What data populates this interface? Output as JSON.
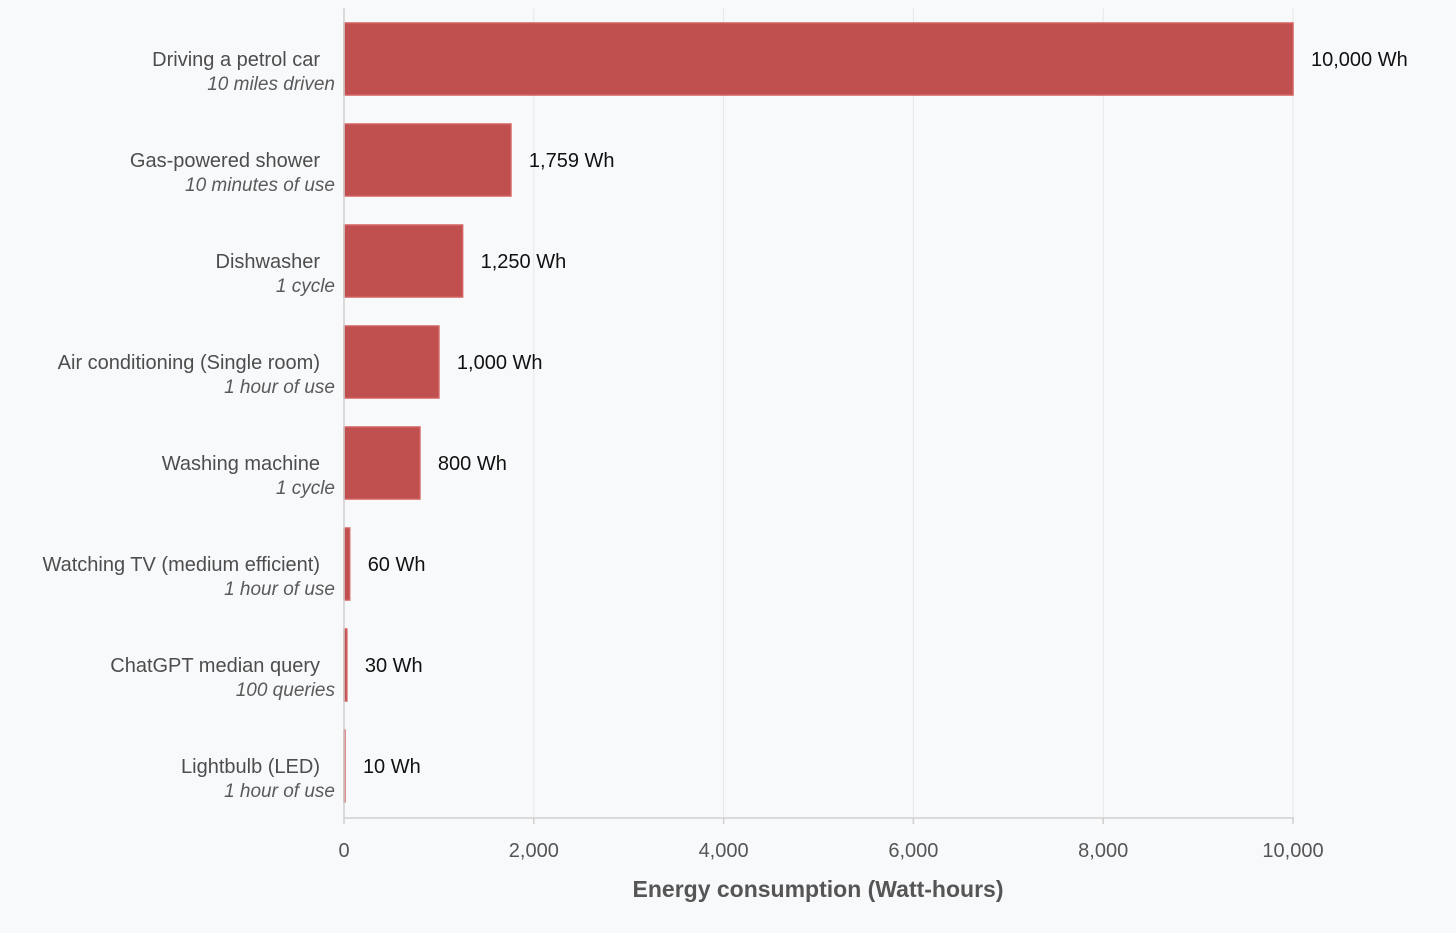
{
  "chart_data": {
    "type": "bar",
    "orientation": "horizontal",
    "categories": [
      "Driving a petrol car",
      "Gas-powered shower",
      "Dishwasher",
      "Air conditioning (Single room)",
      "Washing machine",
      "Watching TV (medium efficient)",
      "ChatGPT median query",
      "Lightbulb (LED)"
    ],
    "subtitles": [
      "10 miles driven",
      "10 minutes of use",
      "1 cycle",
      "1 hour of use",
      "1 cycle",
      "1 hour of use",
      "100 queries",
      "1 hour of use"
    ],
    "values": [
      10000,
      1759,
      1250,
      1000,
      800,
      60,
      30,
      10
    ],
    "value_labels": [
      "10,000 Wh",
      "1,759 Wh",
      "1,250 Wh",
      "1,000 Wh",
      "800 Wh",
      "60 Wh",
      "30 Wh",
      "10 Wh"
    ],
    "xlabel": "Energy consumption (Watt-hours)",
    "xlim": [
      0,
      10000
    ],
    "xticks": [
      0,
      2000,
      4000,
      6000,
      8000,
      10000
    ],
    "xtick_labels": [
      "0",
      "2,000",
      "4,000",
      "6,000",
      "8,000",
      "10,000"
    ],
    "grid": true,
    "bar_color": "#c05050",
    "bar_edge_color": "#d46060"
  }
}
